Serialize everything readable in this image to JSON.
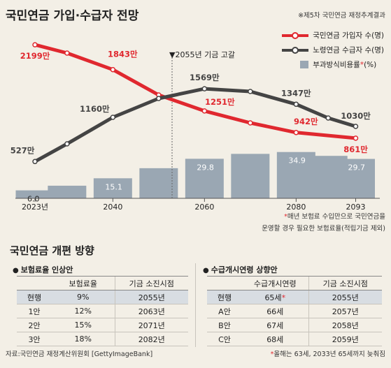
{
  "title": "국민연금 가입·수급자 전망",
  "source_note": "※제5차 국민연금 재정추계결과",
  "colors": {
    "subscribers": "#e0282f",
    "recipients": "#444444",
    "bars": "#9aa7b3"
  },
  "legend": [
    {
      "label": "국민연금 가입자 수(명)",
      "kind": "line",
      "color": "#e0282f"
    },
    {
      "label": "노령연금 수급자 수(명)",
      "kind": "line",
      "color": "#444444"
    },
    {
      "label_pre": "부과방식비용률",
      "star": "*",
      "label_post": "(%)",
      "kind": "box",
      "color": "#9aa7b3"
    }
  ],
  "annotation": "▼2055년 기금 고갈",
  "chart_footnote": [
    "*매년 보험료 수입만으로 국민연금을",
    "운영할 경우 필요한 보험료율(적립기금 제외)"
  ],
  "chart_data": {
    "type": "line+bar",
    "x_ticks": [
      "2023년",
      "2040",
      "2060",
      "2080",
      "2093"
    ],
    "subscribers": {
      "name": "국민연금 가입자 수(명)",
      "points": [
        {
          "x": 2023,
          "y": 2199,
          "label": "2199만"
        },
        {
          "x": 2030,
          "y": 2080
        },
        {
          "x": 2040,
          "y": 1843,
          "label": "1843만"
        },
        {
          "x": 2050,
          "y": 1480
        },
        {
          "x": 2060,
          "y": 1251,
          "label": "1251만"
        },
        {
          "x": 2070,
          "y": 1080
        },
        {
          "x": 2080,
          "y": 942,
          "label": "942만"
        },
        {
          "x": 2093,
          "y": 861,
          "label": "861만"
        }
      ]
    },
    "recipients": {
      "name": "노령연금 수급자 수(명)",
      "points": [
        {
          "x": 2023,
          "y": 527,
          "label": "527만"
        },
        {
          "x": 2030,
          "y": 780
        },
        {
          "x": 2040,
          "y": 1160,
          "label": "1160만"
        },
        {
          "x": 2050,
          "y": 1430
        },
        {
          "x": 2060,
          "y": 1569,
          "label": "1569만"
        },
        {
          "x": 2070,
          "y": 1530
        },
        {
          "x": 2080,
          "y": 1347,
          "label": "1347만"
        },
        {
          "x": 2087,
          "y": 1150
        },
        {
          "x": 2093,
          "y": 1030,
          "label": "1030만"
        }
      ]
    },
    "cost_rate": {
      "name": "부과방식비용률(%)",
      "bars": [
        {
          "x": 2023,
          "value": 6.0,
          "label": "6.0"
        },
        {
          "x": 2030,
          "value": 9.5
        },
        {
          "x": 2040,
          "value": 15.1,
          "label": "15.1"
        },
        {
          "x": 2050,
          "value": 22.7
        },
        {
          "x": 2060,
          "value": 29.8,
          "label": "29.8"
        },
        {
          "x": 2070,
          "value": 33.5
        },
        {
          "x": 2080,
          "value": 34.9,
          "label": "34.9"
        },
        {
          "x": 2087,
          "value": 32.0
        },
        {
          "x": 2093,
          "value": 29.7,
          "label": "29.7"
        }
      ]
    }
  },
  "section_title": "국민연금 개편 방향",
  "table1": {
    "title": "보험료율 인상안",
    "headers": [
      "",
      "보험료율",
      "기금 소진시점"
    ],
    "rows": [
      [
        "현행",
        "9%",
        "2055년"
      ],
      [
        "1안",
        "12%",
        "2063년"
      ],
      [
        "2안",
        "15%",
        "2071년"
      ],
      [
        "3안",
        "18%",
        "2082년"
      ]
    ]
  },
  "table2": {
    "title": "수급개시연령 상향안",
    "headers": [
      "",
      "수급개시연령",
      "기금 소진시점"
    ],
    "rows": [
      [
        "현행",
        "65세",
        "2055년"
      ],
      [
        "A안",
        "66세",
        "2057년"
      ],
      [
        "B안",
        "67세",
        "2058년"
      ],
      [
        "C안",
        "68세",
        "2059년"
      ]
    ],
    "current_star": "*"
  },
  "source": "자료:국민연금 재정계산위원회 [GettyImageBank]",
  "footnote2": "*올해는 63세, 2033년 65세까지 늦춰짐"
}
